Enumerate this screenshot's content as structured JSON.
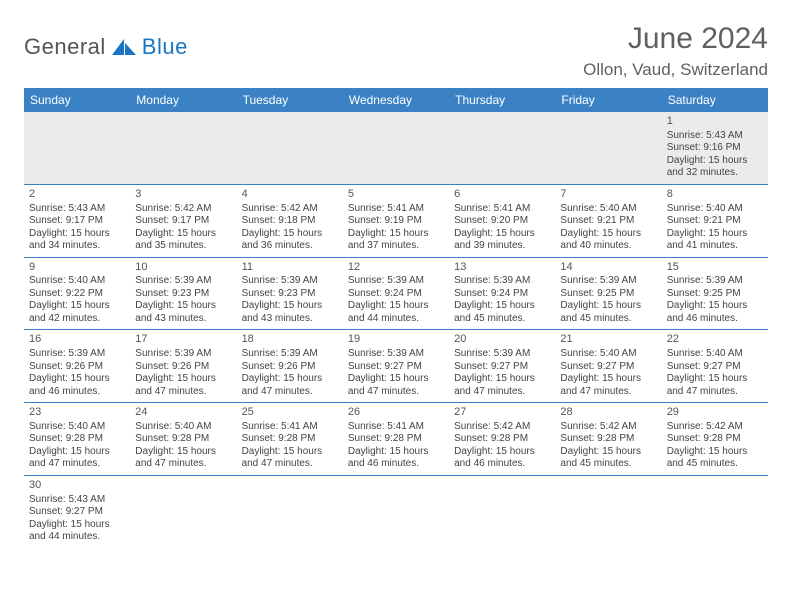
{
  "branding": {
    "name_part1": "General",
    "name_part2": "Blue",
    "logo_color": "#1976c5"
  },
  "header": {
    "title": "June 2024",
    "location": "Ollon, Vaud, Switzerland"
  },
  "calendar": {
    "day_headers": [
      "Sunday",
      "Monday",
      "Tuesday",
      "Wednesday",
      "Thursday",
      "Friday",
      "Saturday"
    ],
    "header_bg": "#3b82c4",
    "header_fg": "#ffffff",
    "row_border": "#3b82c4",
    "alt_row_bg": "#ebebeb",
    "weeks": [
      [
        null,
        null,
        null,
        null,
        null,
        null,
        {
          "d": "1",
          "sunrise": "Sunrise: 5:43 AM",
          "sunset": "Sunset: 9:16 PM",
          "daylight1": "Daylight: 15 hours",
          "daylight2": "and 32 minutes."
        }
      ],
      [
        {
          "d": "2",
          "sunrise": "Sunrise: 5:43 AM",
          "sunset": "Sunset: 9:17 PM",
          "daylight1": "Daylight: 15 hours",
          "daylight2": "and 34 minutes."
        },
        {
          "d": "3",
          "sunrise": "Sunrise: 5:42 AM",
          "sunset": "Sunset: 9:17 PM",
          "daylight1": "Daylight: 15 hours",
          "daylight2": "and 35 minutes."
        },
        {
          "d": "4",
          "sunrise": "Sunrise: 5:42 AM",
          "sunset": "Sunset: 9:18 PM",
          "daylight1": "Daylight: 15 hours",
          "daylight2": "and 36 minutes."
        },
        {
          "d": "5",
          "sunrise": "Sunrise: 5:41 AM",
          "sunset": "Sunset: 9:19 PM",
          "daylight1": "Daylight: 15 hours",
          "daylight2": "and 37 minutes."
        },
        {
          "d": "6",
          "sunrise": "Sunrise: 5:41 AM",
          "sunset": "Sunset: 9:20 PM",
          "daylight1": "Daylight: 15 hours",
          "daylight2": "and 39 minutes."
        },
        {
          "d": "7",
          "sunrise": "Sunrise: 5:40 AM",
          "sunset": "Sunset: 9:21 PM",
          "daylight1": "Daylight: 15 hours",
          "daylight2": "and 40 minutes."
        },
        {
          "d": "8",
          "sunrise": "Sunrise: 5:40 AM",
          "sunset": "Sunset: 9:21 PM",
          "daylight1": "Daylight: 15 hours",
          "daylight2": "and 41 minutes."
        }
      ],
      [
        {
          "d": "9",
          "sunrise": "Sunrise: 5:40 AM",
          "sunset": "Sunset: 9:22 PM",
          "daylight1": "Daylight: 15 hours",
          "daylight2": "and 42 minutes."
        },
        {
          "d": "10",
          "sunrise": "Sunrise: 5:39 AM",
          "sunset": "Sunset: 9:23 PM",
          "daylight1": "Daylight: 15 hours",
          "daylight2": "and 43 minutes."
        },
        {
          "d": "11",
          "sunrise": "Sunrise: 5:39 AM",
          "sunset": "Sunset: 9:23 PM",
          "daylight1": "Daylight: 15 hours",
          "daylight2": "and 43 minutes."
        },
        {
          "d": "12",
          "sunrise": "Sunrise: 5:39 AM",
          "sunset": "Sunset: 9:24 PM",
          "daylight1": "Daylight: 15 hours",
          "daylight2": "and 44 minutes."
        },
        {
          "d": "13",
          "sunrise": "Sunrise: 5:39 AM",
          "sunset": "Sunset: 9:24 PM",
          "daylight1": "Daylight: 15 hours",
          "daylight2": "and 45 minutes."
        },
        {
          "d": "14",
          "sunrise": "Sunrise: 5:39 AM",
          "sunset": "Sunset: 9:25 PM",
          "daylight1": "Daylight: 15 hours",
          "daylight2": "and 45 minutes."
        },
        {
          "d": "15",
          "sunrise": "Sunrise: 5:39 AM",
          "sunset": "Sunset: 9:25 PM",
          "daylight1": "Daylight: 15 hours",
          "daylight2": "and 46 minutes."
        }
      ],
      [
        {
          "d": "16",
          "sunrise": "Sunrise: 5:39 AM",
          "sunset": "Sunset: 9:26 PM",
          "daylight1": "Daylight: 15 hours",
          "daylight2": "and 46 minutes."
        },
        {
          "d": "17",
          "sunrise": "Sunrise: 5:39 AM",
          "sunset": "Sunset: 9:26 PM",
          "daylight1": "Daylight: 15 hours",
          "daylight2": "and 47 minutes."
        },
        {
          "d": "18",
          "sunrise": "Sunrise: 5:39 AM",
          "sunset": "Sunset: 9:26 PM",
          "daylight1": "Daylight: 15 hours",
          "daylight2": "and 47 minutes."
        },
        {
          "d": "19",
          "sunrise": "Sunrise: 5:39 AM",
          "sunset": "Sunset: 9:27 PM",
          "daylight1": "Daylight: 15 hours",
          "daylight2": "and 47 minutes."
        },
        {
          "d": "20",
          "sunrise": "Sunrise: 5:39 AM",
          "sunset": "Sunset: 9:27 PM",
          "daylight1": "Daylight: 15 hours",
          "daylight2": "and 47 minutes."
        },
        {
          "d": "21",
          "sunrise": "Sunrise: 5:40 AM",
          "sunset": "Sunset: 9:27 PM",
          "daylight1": "Daylight: 15 hours",
          "daylight2": "and 47 minutes."
        },
        {
          "d": "22",
          "sunrise": "Sunrise: 5:40 AM",
          "sunset": "Sunset: 9:27 PM",
          "daylight1": "Daylight: 15 hours",
          "daylight2": "and 47 minutes."
        }
      ],
      [
        {
          "d": "23",
          "sunrise": "Sunrise: 5:40 AM",
          "sunset": "Sunset: 9:28 PM",
          "daylight1": "Daylight: 15 hours",
          "daylight2": "and 47 minutes."
        },
        {
          "d": "24",
          "sunrise": "Sunrise: 5:40 AM",
          "sunset": "Sunset: 9:28 PM",
          "daylight1": "Daylight: 15 hours",
          "daylight2": "and 47 minutes."
        },
        {
          "d": "25",
          "sunrise": "Sunrise: 5:41 AM",
          "sunset": "Sunset: 9:28 PM",
          "daylight1": "Daylight: 15 hours",
          "daylight2": "and 47 minutes."
        },
        {
          "d": "26",
          "sunrise": "Sunrise: 5:41 AM",
          "sunset": "Sunset: 9:28 PM",
          "daylight1": "Daylight: 15 hours",
          "daylight2": "and 46 minutes."
        },
        {
          "d": "27",
          "sunrise": "Sunrise: 5:42 AM",
          "sunset": "Sunset: 9:28 PM",
          "daylight1": "Daylight: 15 hours",
          "daylight2": "and 46 minutes."
        },
        {
          "d": "28",
          "sunrise": "Sunrise: 5:42 AM",
          "sunset": "Sunset: 9:28 PM",
          "daylight1": "Daylight: 15 hours",
          "daylight2": "and 45 minutes."
        },
        {
          "d": "29",
          "sunrise": "Sunrise: 5:42 AM",
          "sunset": "Sunset: 9:28 PM",
          "daylight1": "Daylight: 15 hours",
          "daylight2": "and 45 minutes."
        }
      ],
      [
        {
          "d": "30",
          "sunrise": "Sunrise: 5:43 AM",
          "sunset": "Sunset: 9:27 PM",
          "daylight1": "Daylight: 15 hours",
          "daylight2": "and 44 minutes."
        },
        null,
        null,
        null,
        null,
        null,
        null
      ]
    ]
  }
}
